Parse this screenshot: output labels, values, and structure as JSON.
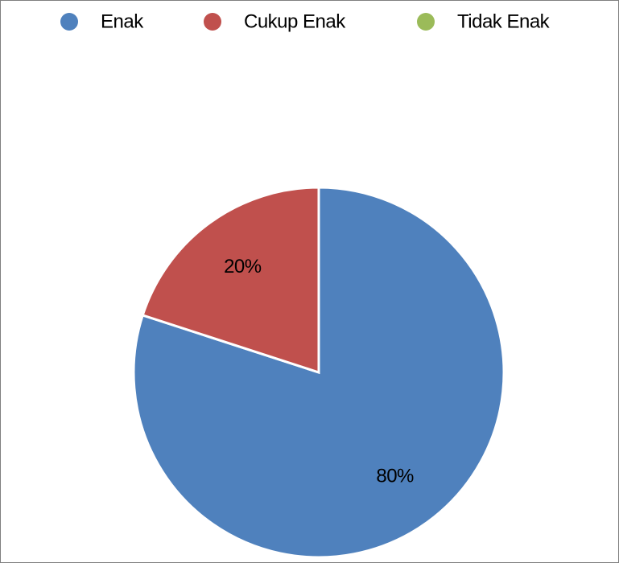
{
  "chart_data": {
    "type": "pie",
    "categories": [
      "Enak",
      "Cukup Enak",
      "Tidak Enak"
    ],
    "values": [
      80,
      20,
      0
    ],
    "value_labels": [
      "80%",
      "20%",
      null
    ],
    "colors": [
      "#4f81bd",
      "#c0504d",
      "#9bbb59"
    ],
    "legend": "top"
  }
}
